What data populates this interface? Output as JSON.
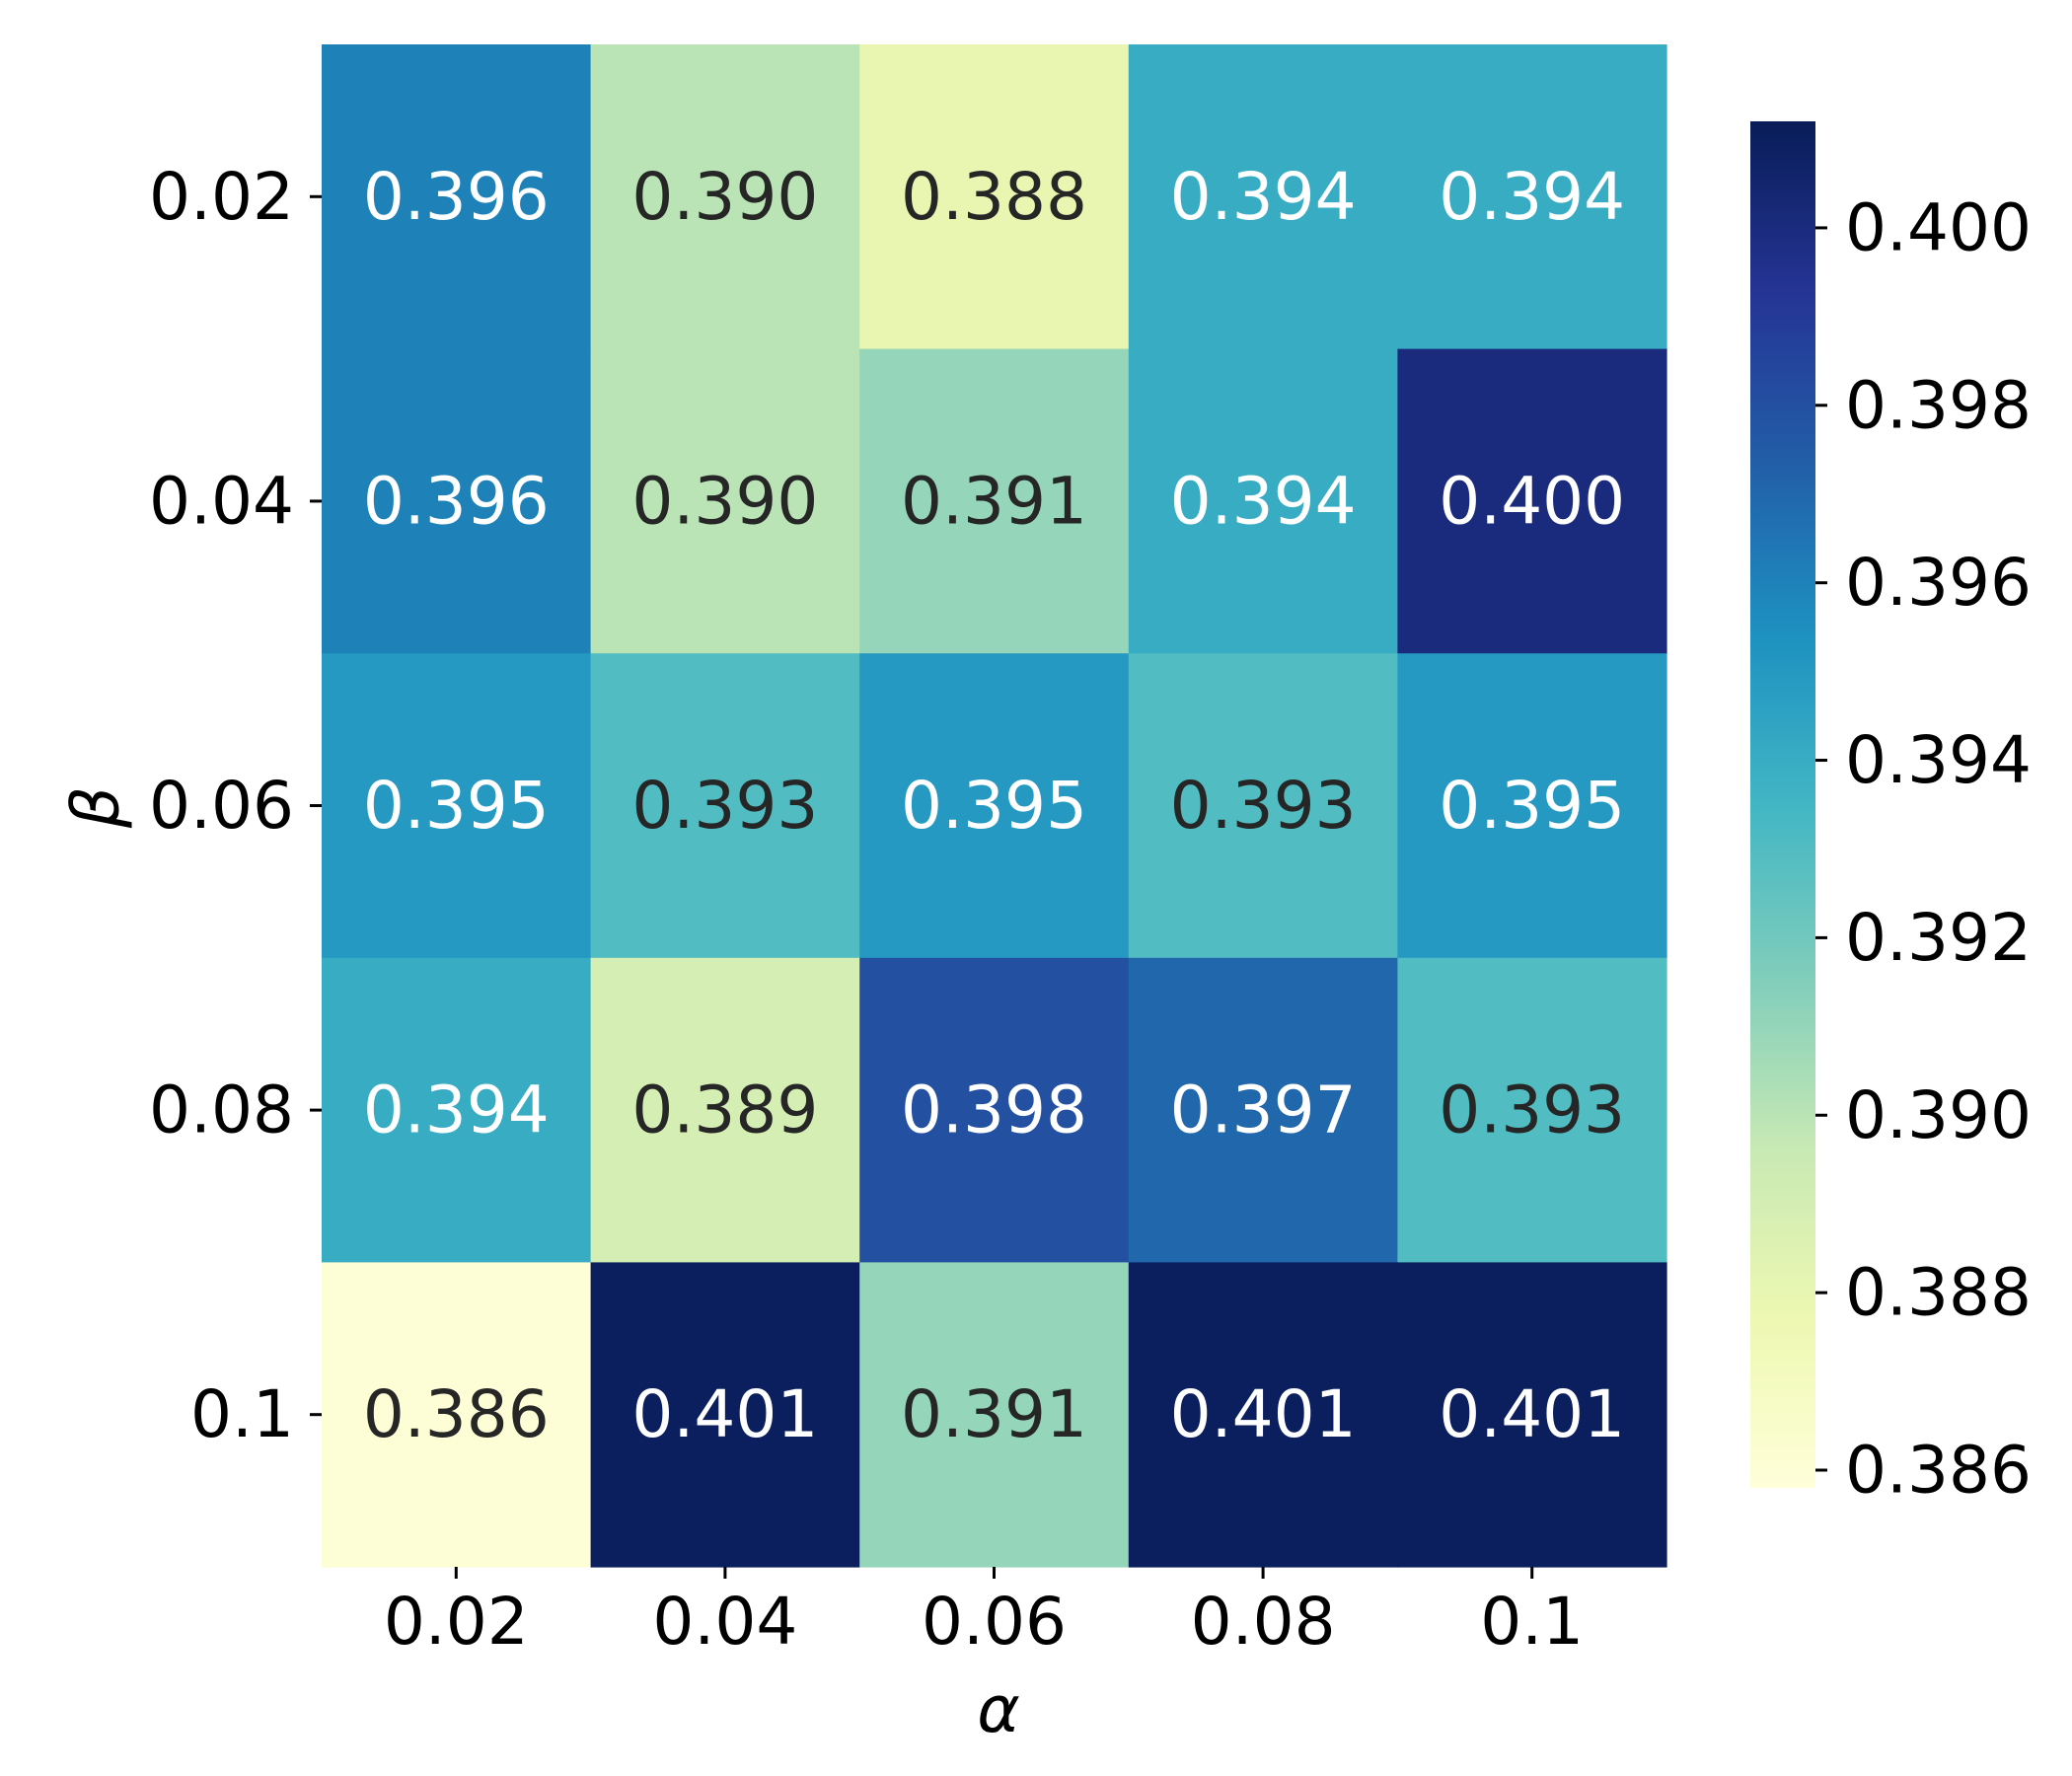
{
  "chart_data": {
    "type": "heatmap",
    "title": "",
    "xlabel": "α",
    "ylabel": "β",
    "x_categories": [
      "0.02",
      "0.04",
      "0.06",
      "0.08",
      "0.1"
    ],
    "y_categories": [
      "0.02",
      "0.04",
      "0.06",
      "0.08",
      "0.1"
    ],
    "values": [
      [
        0.396,
        0.39,
        0.388,
        0.394,
        0.394
      ],
      [
        0.396,
        0.39,
        0.391,
        0.394,
        0.4
      ],
      [
        0.395,
        0.393,
        0.395,
        0.393,
        0.395
      ],
      [
        0.394,
        0.389,
        0.398,
        0.397,
        0.393
      ],
      [
        0.386,
        0.401,
        0.391,
        0.401,
        0.401
      ]
    ],
    "value_format": "0.000",
    "colormap": "YlGnBu",
    "color_stops": [
      "#ffffd9",
      "#edf8b1",
      "#c7e9b4",
      "#7fcdbb",
      "#41b6c4",
      "#1d91c0",
      "#225ea8",
      "#253494",
      "#081d58"
    ],
    "vmin": 0.3858,
    "vmax": 0.4012,
    "colorbar": {
      "ticks": [
        "0.386",
        "0.388",
        "0.390",
        "0.392",
        "0.394",
        "0.396",
        "0.398",
        "0.400"
      ],
      "position": "right"
    },
    "annotation_colors": {
      "light": "#ffffff",
      "dark": "#262626"
    }
  }
}
